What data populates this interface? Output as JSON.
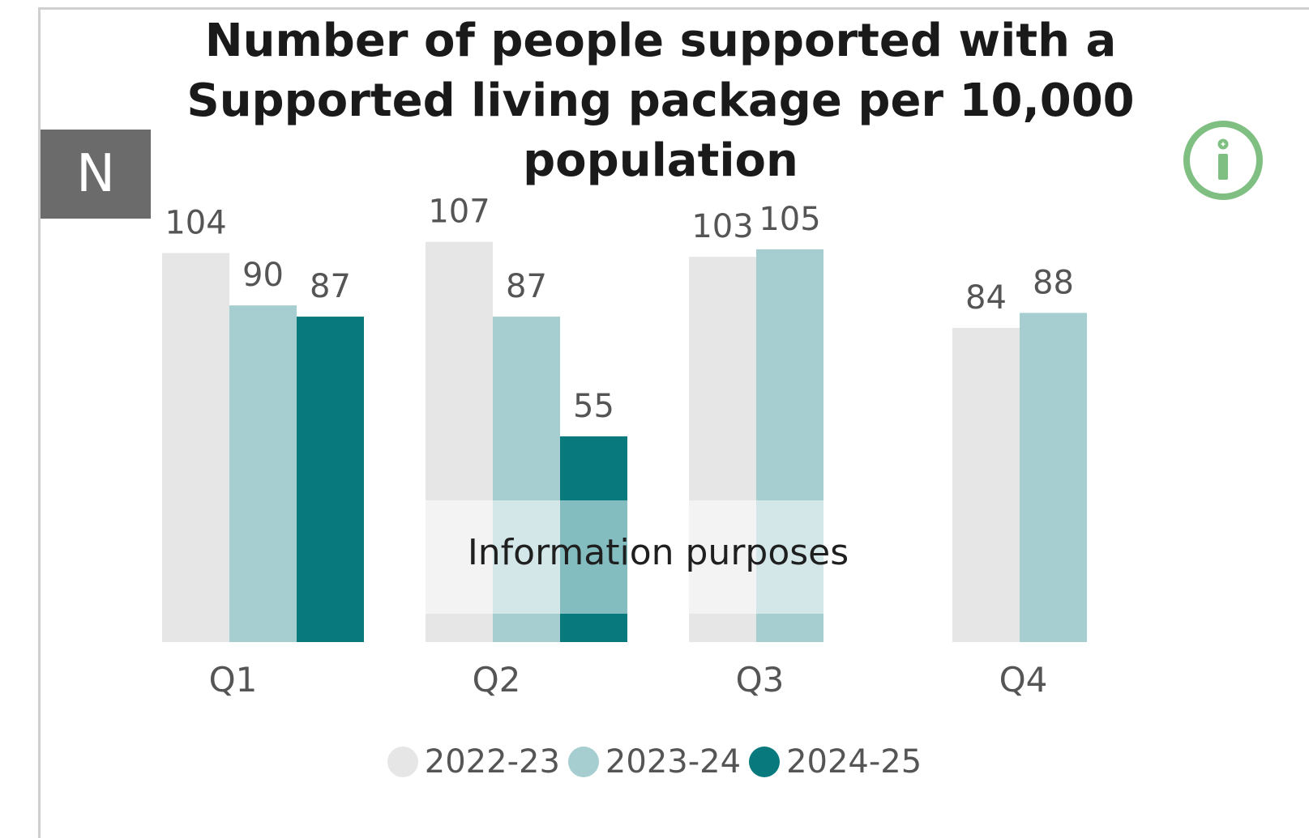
{
  "title": "Number of people supported with a Supported living package per 10,000 population",
  "badge": {
    "label": "N"
  },
  "info_icon": {
    "name": "info-icon",
    "color": "#7fbf82"
  },
  "watermark": {
    "text": "Information purposes"
  },
  "chart_data": {
    "type": "bar",
    "title": "Number of people supported with a Supported living package per 10,000 population",
    "categories": [
      "Q1",
      "Q2",
      "Q3",
      "Q4"
    ],
    "series": [
      {
        "name": "2022-23",
        "color": "#e6e6e6",
        "values": [
          104,
          107,
          103,
          84
        ]
      },
      {
        "name": "2023-24",
        "color": "#a6ced0",
        "values": [
          90,
          87,
          105,
          88
        ]
      },
      {
        "name": "2024-25",
        "color": "#087a7e",
        "values": [
          87,
          55,
          null,
          null
        ]
      }
    ],
    "ylim": [
      0,
      110
    ],
    "grid": false,
    "legend_position": "bottom",
    "data_labels": true
  }
}
